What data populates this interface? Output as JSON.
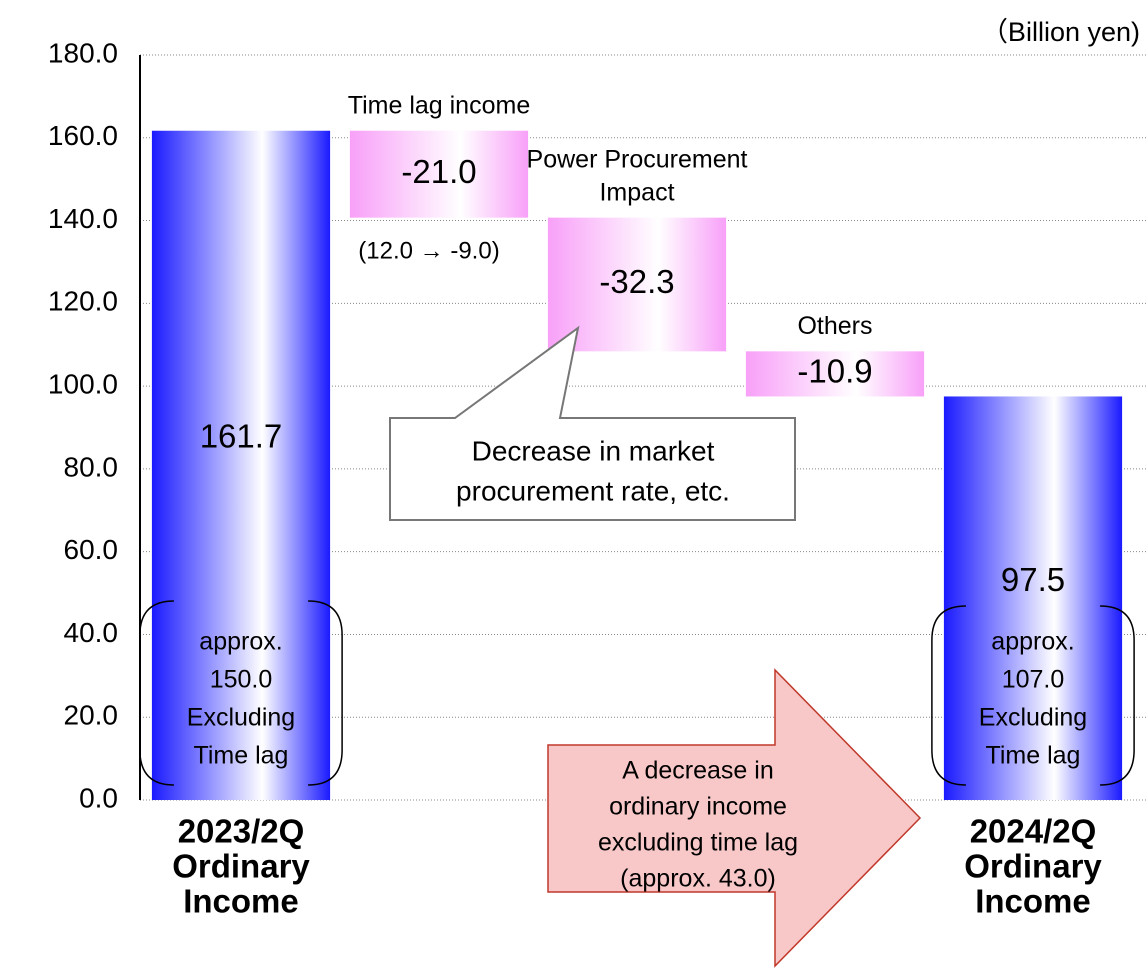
{
  "chart_data": {
    "type": "waterfall",
    "unit_label": "（Billion yen)",
    "categories": [
      [
        "2023/2Q",
        "Ordinary",
        "Income"
      ],
      [
        "Time lag income"
      ],
      [
        "Power Procurement",
        "Impact"
      ],
      [
        "Others"
      ],
      [
        "2024/2Q",
        "Ordinary",
        "Income"
      ]
    ],
    "values": [
      161.7,
      -21.0,
      -32.3,
      -10.9,
      97.5
    ],
    "value_labels": [
      "161.7",
      "-21.0",
      "-32.3",
      "-10.9",
      "97.5"
    ],
    "is_total": [
      true,
      false,
      false,
      false,
      true
    ],
    "total_color": "#1a1aff",
    "decrease_color": "#f8a0f8",
    "ylim": [
      0,
      180
    ],
    "yticks": [
      {
        "value": 0,
        "label": "0.0"
      },
      {
        "value": 20,
        "label": "20.0"
      },
      {
        "value": 40,
        "label": "40.0"
      },
      {
        "value": 60,
        "label": "60.0"
      },
      {
        "value": 80,
        "label": "80.0"
      },
      {
        "value": 100,
        "label": "100.0"
      },
      {
        "value": 120,
        "label": "120.0"
      },
      {
        "value": 140,
        "label": "140.0"
      },
      {
        "value": 160,
        "label": "160.0"
      },
      {
        "value": 180,
        "label": "180.0"
      }
    ],
    "grid": true,
    "annotations": {
      "time_lag_detail": "(12.0 → -9.0)",
      "callout": [
        "Decrease in market",
        "procurement rate, etc."
      ],
      "note_2023": [
        "approx.",
        "150.0",
        "Excluding",
        "Time lag"
      ],
      "note_2024": [
        "approx.",
        "107.0",
        "Excluding",
        "Time lag"
      ],
      "arrow": [
        "A decrease in",
        "ordinary income",
        "excluding time lag",
        "(approx. 43.0)"
      ]
    }
  }
}
